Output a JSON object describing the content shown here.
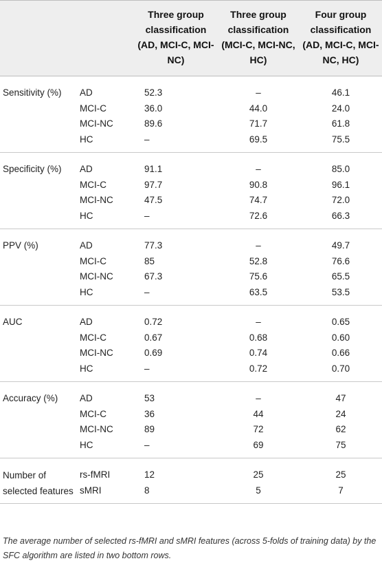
{
  "header": {
    "col1": "",
    "col2": "",
    "col3": "Three group classification (AD, MCI-C, MCI-NC)",
    "col4": "Three group classification (MCI-C, MCI-NC, HC)",
    "col5": "Four group classification (AD, MCI-C, MCI-NC, HC)"
  },
  "groups": [
    {
      "metric": "Sensitivity (%)",
      "rows": [
        {
          "label": "AD",
          "v1": "52.3",
          "v2": "–",
          "v3": "46.1"
        },
        {
          "label": "MCI-C",
          "v1": "36.0",
          "v2": "44.0",
          "v3": "24.0"
        },
        {
          "label": "MCI-NC",
          "v1": "89.6",
          "v2": "71.7",
          "v3": "61.8"
        },
        {
          "label": "HC",
          "v1": "–",
          "v2": "69.5",
          "v3": "75.5"
        }
      ]
    },
    {
      "metric": "Specificity (%)",
      "rows": [
        {
          "label": "AD",
          "v1": "91.1",
          "v2": "–",
          "v3": "85.0"
        },
        {
          "label": "MCI-C",
          "v1": "97.7",
          "v2": "90.8",
          "v3": "96.1"
        },
        {
          "label": "MCI-NC",
          "v1": "47.5",
          "v2": "74.7",
          "v3": "72.0"
        },
        {
          "label": "HC",
          "v1": "–",
          "v2": "72.6",
          "v3": "66.3"
        }
      ]
    },
    {
      "metric": "PPV (%)",
      "rows": [
        {
          "label": "AD",
          "v1": "77.3",
          "v2": "–",
          "v3": "49.7"
        },
        {
          "label": "MCI-C",
          "v1": "85",
          "v2": "52.8",
          "v3": "76.6"
        },
        {
          "label": "MCI-NC",
          "v1": "67.3",
          "v2": "75.6",
          "v3": "65.5"
        },
        {
          "label": "HC",
          "v1": "–",
          "v2": "63.5",
          "v3": "53.5"
        }
      ]
    },
    {
      "metric": "AUC",
      "rows": [
        {
          "label": "AD",
          "v1": "0.72",
          "v2": "–",
          "v3": "0.65"
        },
        {
          "label": "MCI-C",
          "v1": "0.67",
          "v2": "0.68",
          "v3": "0.60"
        },
        {
          "label": "MCI-NC",
          "v1": "0.69",
          "v2": "0.74",
          "v3": "0.66"
        },
        {
          "label": "HC",
          "v1": "–",
          "v2": "0.72",
          "v3": "0.70"
        }
      ]
    },
    {
      "metric": "Accuracy (%)",
      "rows": [
        {
          "label": "AD",
          "v1": "53",
          "v2": "–",
          "v3": "47"
        },
        {
          "label": "MCI-C",
          "v1": "36",
          "v2": "44",
          "v3": "24"
        },
        {
          "label": "MCI-NC",
          "v1": "89",
          "v2": "72",
          "v3": "62"
        },
        {
          "label": "HC",
          "v1": "–",
          "v2": "69",
          "v3": "75"
        }
      ]
    },
    {
      "metric": "Number of selected features",
      "rows": [
        {
          "label": "rs-fMRI",
          "v1": "12",
          "v2": "25",
          "v3": "25"
        },
        {
          "label": "sMRI",
          "v1": "8",
          "v2": "5",
          "v3": "7"
        }
      ]
    }
  ],
  "footnote": "The average number of selected rs-fMRI and sMRI features (across 5-folds of training data) by the SFC algorithm are listed in two bottom rows."
}
